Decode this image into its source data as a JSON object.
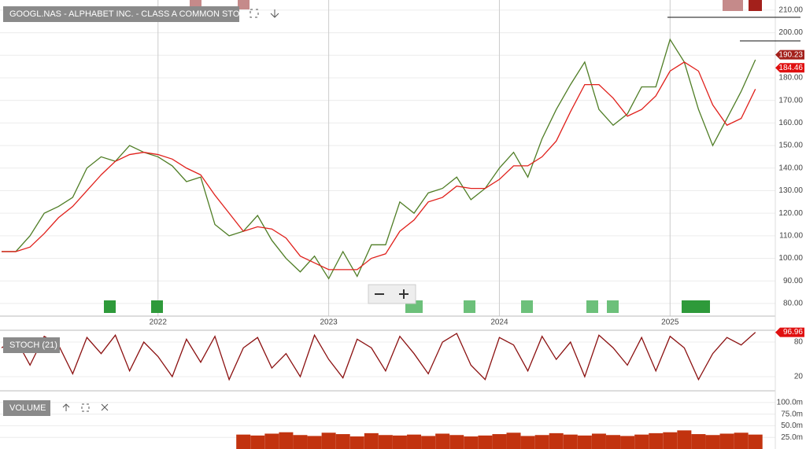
{
  "chart_data": [
    {
      "type": "line",
      "title": "GOOGL.NAS - ALPHABET INC. - CLASS A COMMON STOCK",
      "categories": [
        null,
        null,
        null,
        null,
        null,
        null,
        null,
        null,
        null,
        null,
        null,
        "2022",
        null,
        null,
        null,
        null,
        null,
        null,
        null,
        null,
        null,
        null,
        null,
        "2023",
        null,
        null,
        null,
        null,
        null,
        null,
        null,
        null,
        null,
        null,
        null,
        "2024",
        null,
        null,
        null,
        null,
        null,
        null,
        null,
        null,
        null,
        null,
        null,
        "2025",
        null,
        null,
        null,
        null,
        null,
        null
      ],
      "series": [
        {
          "color": "#4f7d25",
          "values": [
            103,
            103,
            110,
            120,
            123,
            127,
            140,
            145,
            143,
            150,
            147,
            145,
            141,
            134,
            136,
            115,
            110,
            112,
            119,
            108,
            100,
            94,
            101,
            91,
            103,
            92,
            106,
            106,
            125,
            120,
            129,
            131,
            136,
            126,
            131,
            140,
            147,
            136,
            153,
            166,
            177,
            187,
            166,
            159,
            164,
            176,
            176,
            197,
            187,
            166,
            150,
            162,
            174,
            188
          ]
        },
        {
          "color": "#e0201b",
          "values": [
            103,
            103,
            105,
            111,
            118,
            123,
            130,
            137,
            143,
            146,
            147,
            146,
            144,
            140,
            137,
            128,
            120,
            112,
            114,
            113,
            109,
            101,
            98,
            95,
            95,
            95,
            100,
            102,
            112,
            117,
            125,
            127,
            132,
            131,
            131,
            135,
            141,
            141,
            145,
            152,
            165,
            177,
            177,
            171,
            163,
            166,
            172,
            183,
            187,
            183,
            168,
            159,
            162,
            175
          ]
        }
      ],
      "price_tags": [
        {
          "value": 190.23,
          "color": "#a3201b"
        },
        {
          "value": 184.46,
          "color": "#e01010"
        }
      ],
      "ylim": [
        74.4,
        214.5
      ],
      "yticks": [
        {
          "value": 80,
          "label": "80.00"
        },
        {
          "value": 90,
          "label": "90.00"
        },
        {
          "value": 100,
          "label": "100.00"
        },
        {
          "value": 110,
          "label": "110.00"
        },
        {
          "value": 120,
          "label": "120.00"
        },
        {
          "value": 130,
          "label": "130.00"
        },
        {
          "value": 140,
          "label": "140.00"
        },
        {
          "value": 150,
          "label": "150.00"
        },
        {
          "value": 160,
          "label": "160.00"
        },
        {
          "value": 170,
          "label": "170.00"
        },
        {
          "value": 180,
          "label": "180.00"
        },
        {
          "value": 190,
          "label": "190.00"
        },
        {
          "value": 200,
          "label": "200.00"
        },
        {
          "value": 210,
          "label": "210.00"
        }
      ],
      "grid": true
    },
    {
      "type": "line",
      "title": "STOCH (21)",
      "series": [
        {
          "color": "#8b1010",
          "values": [
            70,
            85,
            40,
            90,
            75,
            25,
            88,
            60,
            92,
            30,
            80,
            55,
            20,
            85,
            45,
            90,
            15,
            70,
            88,
            35,
            60,
            20,
            92,
            50,
            18,
            85,
            70,
            30,
            90,
            60,
            25,
            80,
            95,
            40,
            15,
            88,
            75,
            30,
            90,
            50,
            80,
            20,
            92,
            70,
            40,
            88,
            30,
            90,
            70,
            15,
            60,
            88,
            75,
            96.96
          ]
        }
      ],
      "price_tags": [
        {
          "value": 96.96,
          "color": "#e01010"
        }
      ],
      "ylim": [
        -4.5,
        100.5
      ],
      "yticks": [
        80,
        20
      ],
      "grid": true
    },
    {
      "type": "bar",
      "title": "VOLUME",
      "color": "#c2330f",
      "values": [
        null,
        null,
        null,
        null,
        null,
        null,
        null,
        null,
        null,
        null,
        null,
        null,
        null,
        null,
        null,
        null,
        null,
        31,
        29,
        33,
        36,
        30,
        28,
        35,
        32,
        27,
        34,
        30,
        29,
        31,
        28,
        33,
        30,
        27,
        29,
        32,
        35,
        28,
        30,
        34,
        31,
        29,
        33,
        30,
        28,
        31,
        34,
        36,
        40,
        32,
        30,
        33,
        35,
        31
      ],
      "ylim": [
        0,
        120
      ],
      "yticks": [
        {
          "value": 100,
          "label": "100.0m"
        },
        {
          "value": 75,
          "label": "75.0m"
        },
        {
          "value": 50,
          "label": "50.0m"
        },
        {
          "value": 25,
          "label": "25.0m"
        }
      ],
      "grid": true
    }
  ]
}
